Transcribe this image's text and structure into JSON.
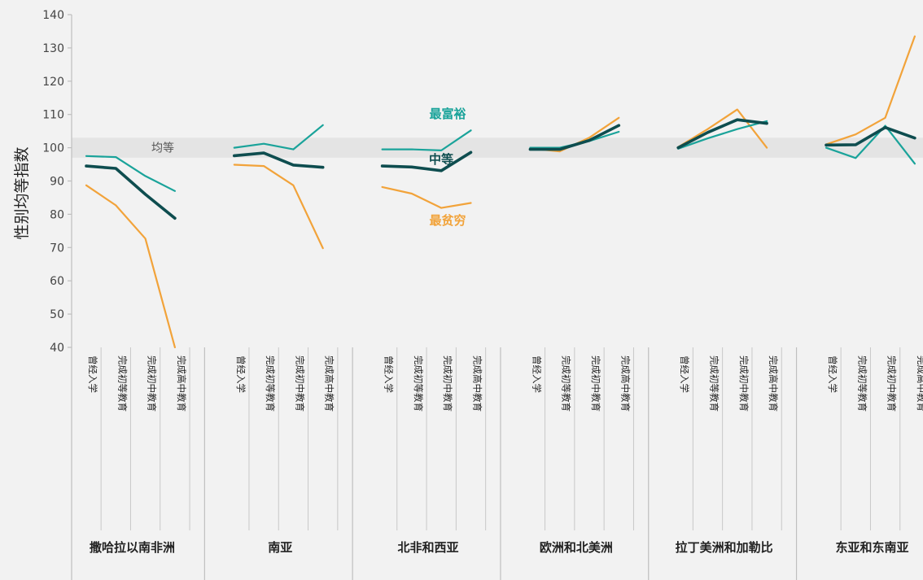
{
  "chart_data": {
    "type": "line",
    "ylabel": "性别均等指数",
    "ylim": [
      40,
      140
    ],
    "yticks": [
      40,
      50,
      60,
      70,
      80,
      90,
      100,
      110,
      120,
      130,
      140
    ],
    "parity_band": {
      "label": "均等",
      "range": [
        97,
        103
      ],
      "color": "#e4e4e4"
    },
    "categories": [
      "曾经入学",
      "完成初等教育",
      "完成初中教育",
      "完成高中教育"
    ],
    "series_styles": [
      {
        "key": "richest",
        "name": "最富裕",
        "color": "#1aa39a",
        "width": 2.2
      },
      {
        "key": "middle",
        "name": "中等",
        "color": "#0e4d4f",
        "width": 3.6
      },
      {
        "key": "poorest",
        "name": "最贫穷",
        "color": "#f2a33a",
        "width": 2.2
      }
    ],
    "regions": [
      {
        "name": "撒哈拉以南非洲",
        "richest": [
          97.5,
          97.2,
          91.5,
          87
        ],
        "middle": [
          94.5,
          93.8,
          86,
          78.8
        ],
        "poorest": [
          88.7,
          82.7,
          72.7,
          40
        ]
      },
      {
        "name": "南亚",
        "richest": [
          100,
          101.2,
          99.5,
          106.8
        ],
        "middle": [
          97.6,
          98.4,
          94.8,
          94.1
        ],
        "poorest": [
          94.9,
          94.5,
          88.7,
          69.8
        ]
      },
      {
        "name": "北非和西亚",
        "richest": [
          99.5,
          99.5,
          99.2,
          105.2
        ],
        "middle": [
          94.5,
          94.2,
          93.1,
          98.6
        ],
        "poorest": [
          88.2,
          86.2,
          81.9,
          83.4
        ]
      },
      {
        "name": "欧洲和北美洲",
        "richest": [
          100,
          100,
          102,
          104.8
        ],
        "middle": [
          99.5,
          99.5,
          102.2,
          106.7
        ],
        "poorest": [
          99.8,
          98.9,
          103,
          109
        ]
      },
      {
        "name": "拉丁美洲和加勒比",
        "richest": [
          99.7,
          102.8,
          105.6,
          108
        ],
        "middle": [
          100,
          104.6,
          108.4,
          107.3
        ],
        "poorest": [
          100.2,
          105.6,
          111.5,
          100
        ]
      },
      {
        "name": "东亚和东南亚",
        "richest": [
          100,
          96.9,
          106.6,
          95.2
        ],
        "middle": [
          100.8,
          100.9,
          106.1,
          102.9
        ],
        "poorest": [
          101,
          104,
          109,
          133.5
        ]
      }
    ],
    "annotations": [
      {
        "text": "最富裕",
        "series": "richest",
        "region": 2
      },
      {
        "text": "中等",
        "series": "middle",
        "region": 2
      },
      {
        "text": "最贫穷",
        "series": "poorest",
        "region": 2
      }
    ]
  }
}
